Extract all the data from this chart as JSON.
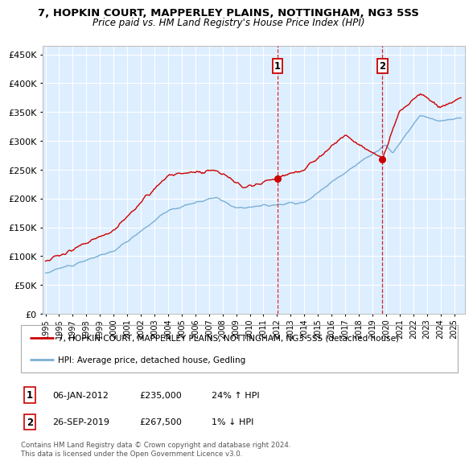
{
  "title_line1": "7, HOPKIN COURT, MAPPERLEY PLAINS, NOTTINGHAM, NG3 5SS",
  "title_line2": "Price paid vs. HM Land Registry's House Price Index (HPI)",
  "ytick_values": [
    0,
    50000,
    100000,
    150000,
    200000,
    250000,
    300000,
    350000,
    400000,
    450000
  ],
  "ylim": [
    0,
    465000
  ],
  "xlim_start": 1994.8,
  "xlim_end": 2025.8,
  "sale1": {
    "date_num": 2012.02,
    "price": 235000,
    "label": "1",
    "date_str": "06-JAN-2012",
    "pct": "24% ↑ HPI"
  },
  "sale2": {
    "date_num": 2019.73,
    "price": 267500,
    "label": "2",
    "date_str": "26-SEP-2019",
    "pct": "1% ↓ HPI"
  },
  "legend_red": "7, HOPKIN COURT, MAPPERLEY PLAINS, NOTTINGHAM, NG3 5SS (detached house)",
  "legend_blue": "HPI: Average price, detached house, Gedling",
  "footnote": "Contains HM Land Registry data © Crown copyright and database right 2024.\nThis data is licensed under the Open Government Licence v3.0.",
  "red_color": "#cc0000",
  "blue_color": "#7aafd4",
  "background_plot": "#ddeeff",
  "background_fig": "#ffffff",
  "grid_color": "#ffffff"
}
